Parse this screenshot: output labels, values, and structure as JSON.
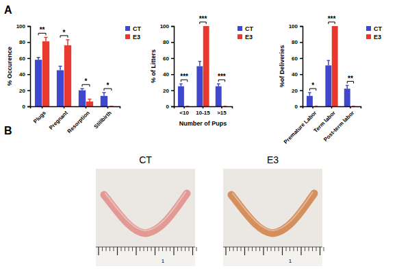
{
  "chart_data": [
    {
      "type": "bar",
      "y_label": "% Occurence",
      "categories": [
        "Plugs",
        "Pregnant",
        "Resorption",
        "Stillbirth"
      ],
      "series": [
        {
          "name": "CT",
          "color": "#3f48cc",
          "values": [
            58,
            45,
            20,
            13
          ],
          "errors": [
            3,
            5,
            2,
            4
          ]
        },
        {
          "name": "E3",
          "color": "#e8392f",
          "values": [
            81,
            76,
            6,
            0
          ],
          "errors": [
            5,
            7,
            3,
            0
          ]
        }
      ],
      "significance": [
        "**",
        "*",
        "*",
        "*"
      ],
      "ylim": [
        0,
        100
      ],
      "yticks": [
        0,
        20,
        40,
        60,
        80,
        100
      ],
      "grid": false,
      "legend": "right"
    },
    {
      "type": "bar",
      "y_label": "% of Litters",
      "x_label": "Number of Pups",
      "categories": [
        "<10",
        "10-15",
        ">15"
      ],
      "series": [
        {
          "name": "CT",
          "color": "#3f48cc",
          "values": [
            25,
            50,
            25
          ],
          "errors": [
            3,
            6,
            3
          ]
        },
        {
          "name": "E3",
          "color": "#e8392f",
          "values": [
            0,
            100,
            0
          ],
          "errors": [
            0,
            0,
            0
          ]
        }
      ],
      "significance": [
        "***",
        "***",
        "***"
      ],
      "ylim": [
        0,
        100
      ],
      "yticks": [
        0,
        20,
        40,
        60,
        80,
        100
      ],
      "grid": false,
      "legend": "right"
    },
    {
      "type": "bar",
      "y_label": "%of Deliveries",
      "categories": [
        "Premature Labor",
        "Term labor",
        "Post-term labor"
      ],
      "series": [
        {
          "name": "CT",
          "color": "#3f48cc",
          "values": [
            13,
            51,
            22
          ],
          "errors": [
            4,
            6,
            4
          ]
        },
        {
          "name": "E3",
          "color": "#e8392f",
          "values": [
            0,
            100,
            0
          ],
          "errors": [
            0,
            0,
            0
          ]
        }
      ],
      "significance": [
        "*",
        "***",
        "**"
      ],
      "ylim": [
        0,
        100
      ],
      "yticks": [
        0,
        20,
        40,
        60,
        80,
        100
      ],
      "grid": false,
      "legend": "right"
    }
  ],
  "panel_labels": [
    "A",
    "B"
  ],
  "photos": [
    {
      "label": "CT",
      "ruler_label": "1"
    },
    {
      "label": "E3",
      "ruler_label": "1"
    }
  ]
}
